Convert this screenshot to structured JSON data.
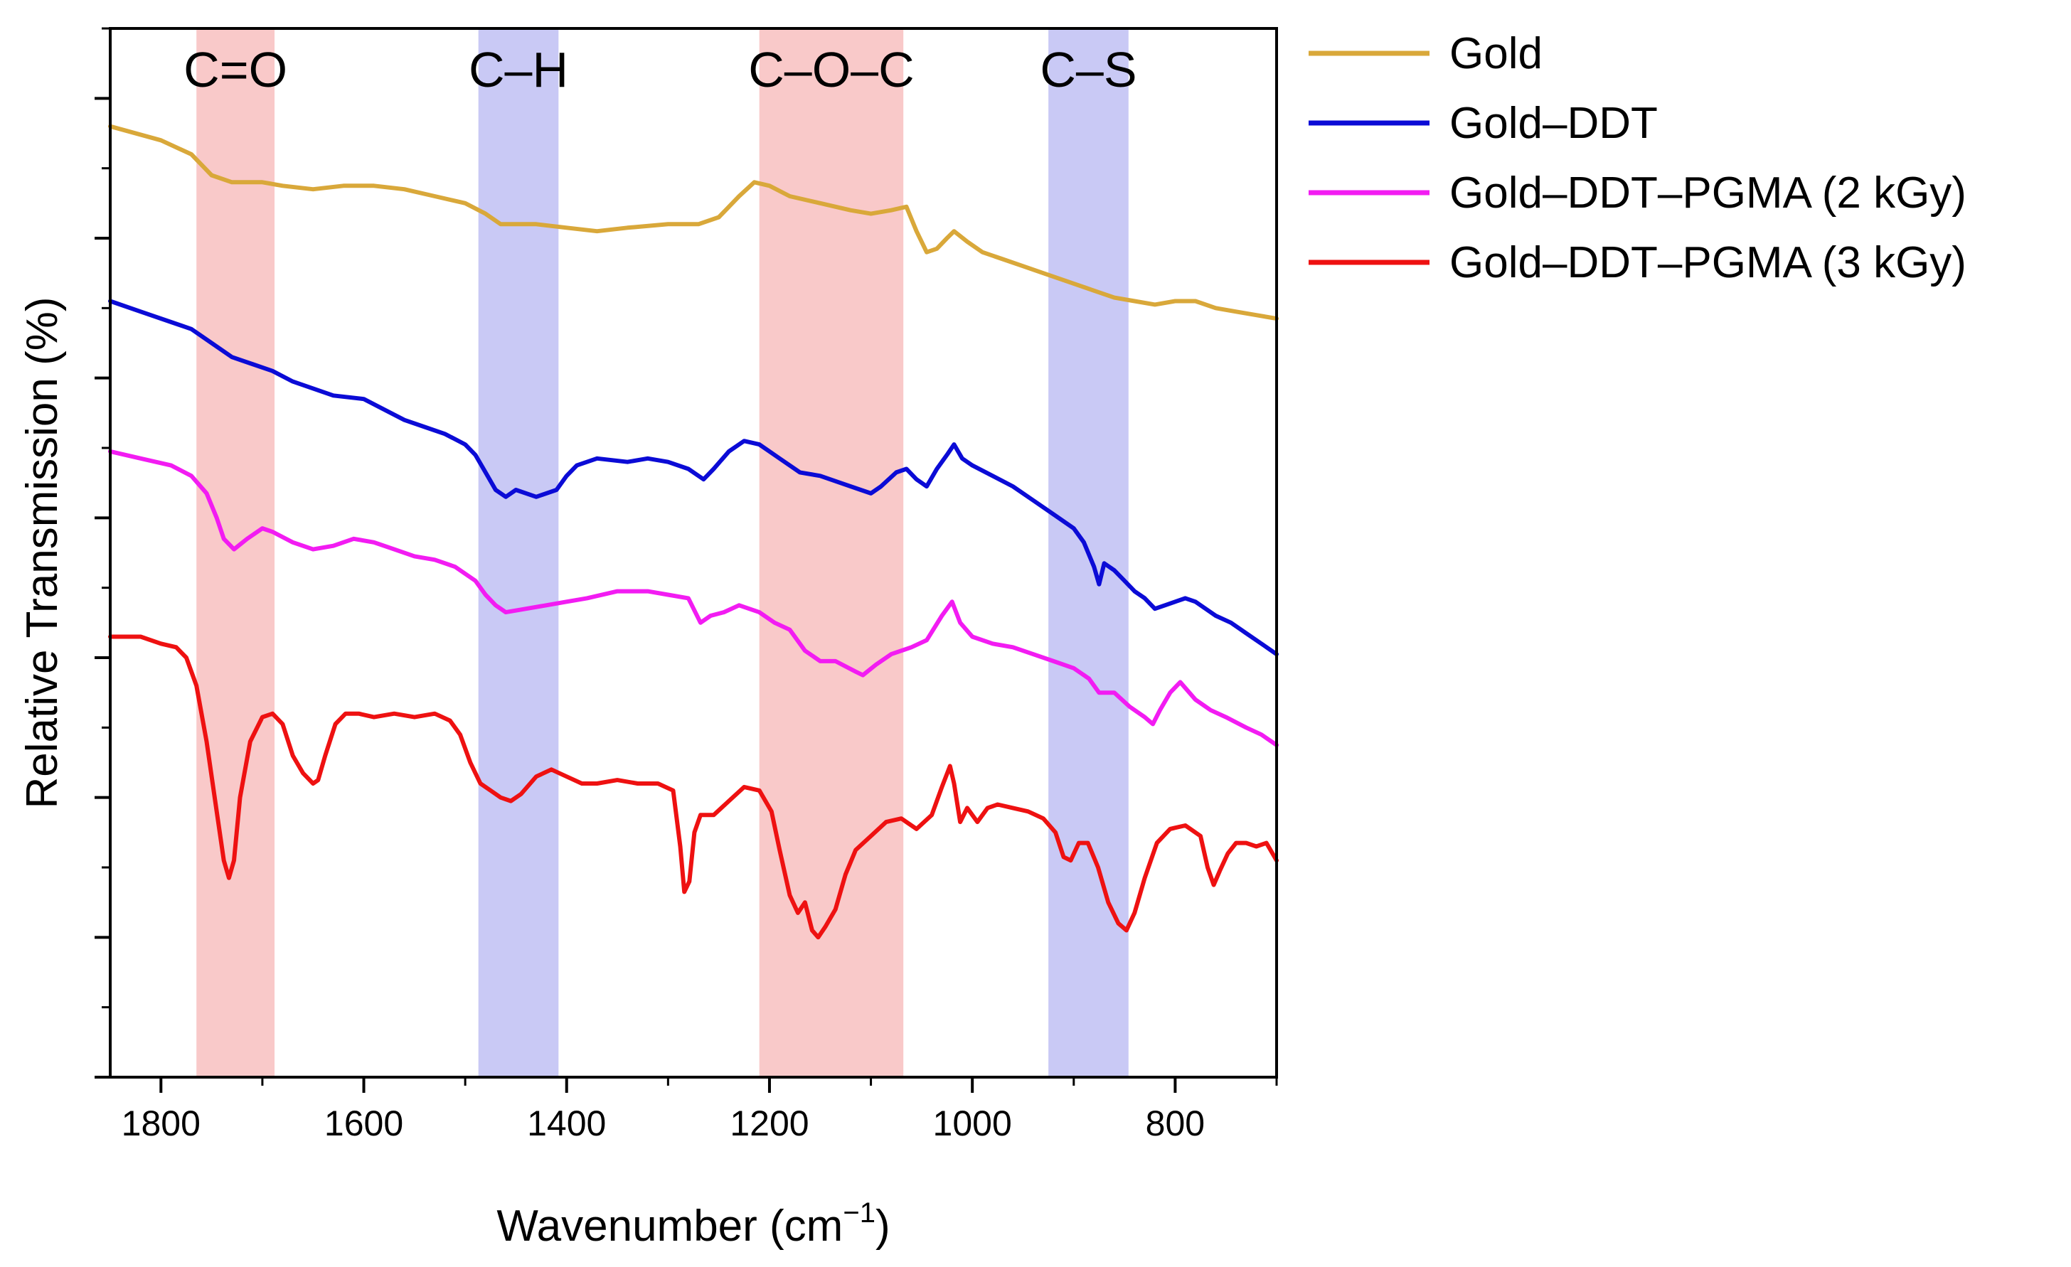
{
  "chart_data": {
    "type": "line",
    "title": "",
    "xlabel": "Wavenumber (cm",
    "xlabel_sup": "−1",
    "xlabel_close": ")",
    "ylabel": "Relative Transmission (%)",
    "xlim": [
      1850,
      700
    ],
    "x_reversed": true,
    "ylim": [
      0,
      15
    ],
    "y_tick_labels_shown": false,
    "x_ticks": [
      1800,
      1600,
      1400,
      1200,
      1000,
      800
    ],
    "x_tick_labels": [
      "1800",
      "1600",
      "1400",
      "1200",
      "1000",
      "800"
    ],
    "grid": false,
    "legend_position": "outside-right-top",
    "bands": [
      {
        "label": "C=O",
        "from": 1765,
        "to": 1688,
        "color": "#f9c9c9"
      },
      {
        "label": "C–H",
        "from": 1487,
        "to": 1408,
        "color": "#c9c9f5"
      },
      {
        "label": "C–O–C",
        "from": 1210,
        "to": 1068,
        "color": "#f9c9c9"
      },
      {
        "label": "C–S",
        "from": 925,
        "to": 846,
        "color": "#c9c9f5"
      }
    ],
    "series": [
      {
        "name": "Gold",
        "color": "#d9a83a",
        "x": [
          1850,
          1800,
          1770,
          1750,
          1730,
          1700,
          1680,
          1650,
          1620,
          1590,
          1560,
          1530,
          1500,
          1480,
          1465,
          1450,
          1430,
          1400,
          1370,
          1340,
          1300,
          1270,
          1250,
          1230,
          1215,
          1200,
          1180,
          1150,
          1120,
          1100,
          1080,
          1065,
          1055,
          1045,
          1035,
          1025,
          1018,
          1005,
          990,
          970,
          950,
          930,
          900,
          880,
          860,
          840,
          820,
          800,
          780,
          760,
          740,
          720,
          700
        ],
        "y": [
          13.6,
          13.4,
          13.2,
          12.9,
          12.8,
          12.8,
          12.75,
          12.7,
          12.75,
          12.75,
          12.7,
          12.6,
          12.5,
          12.35,
          12.2,
          12.2,
          12.2,
          12.15,
          12.1,
          12.15,
          12.2,
          12.2,
          12.3,
          12.6,
          12.8,
          12.75,
          12.6,
          12.5,
          12.4,
          12.35,
          12.4,
          12.45,
          12.1,
          11.8,
          11.85,
          12.0,
          12.1,
          11.95,
          11.8,
          11.7,
          11.6,
          11.5,
          11.35,
          11.25,
          11.15,
          11.1,
          11.05,
          11.1,
          11.1,
          11.0,
          10.95,
          10.9,
          10.85
        ]
      },
      {
        "name": "Gold–DDT",
        "color": "#0b0bd6",
        "x": [
          1850,
          1820,
          1790,
          1770,
          1750,
          1730,
          1710,
          1690,
          1670,
          1650,
          1630,
          1600,
          1580,
          1560,
          1540,
          1520,
          1500,
          1490,
          1480,
          1470,
          1460,
          1450,
          1430,
          1410,
          1400,
          1390,
          1370,
          1340,
          1320,
          1300,
          1280,
          1265,
          1255,
          1240,
          1225,
          1210,
          1190,
          1170,
          1150,
          1130,
          1110,
          1100,
          1090,
          1075,
          1065,
          1055,
          1045,
          1035,
          1025,
          1018,
          1010,
          1000,
          980,
          960,
          940,
          920,
          900,
          890,
          880,
          875,
          870,
          860,
          850,
          840,
          830,
          820,
          810,
          800,
          790,
          780,
          770,
          760,
          745,
          730,
          715,
          700
        ],
        "y": [
          11.1,
          10.95,
          10.8,
          10.7,
          10.5,
          10.3,
          10.2,
          10.1,
          9.95,
          9.85,
          9.75,
          9.7,
          9.55,
          9.4,
          9.3,
          9.2,
          9.05,
          8.9,
          8.65,
          8.4,
          8.3,
          8.4,
          8.3,
          8.4,
          8.6,
          8.75,
          8.85,
          8.8,
          8.85,
          8.8,
          8.7,
          8.55,
          8.7,
          8.95,
          9.1,
          9.05,
          8.85,
          8.65,
          8.6,
          8.5,
          8.4,
          8.35,
          8.45,
          8.65,
          8.7,
          8.55,
          8.45,
          8.7,
          8.9,
          9.05,
          8.85,
          8.75,
          8.6,
          8.45,
          8.25,
          8.05,
          7.85,
          7.65,
          7.3,
          7.05,
          7.35,
          7.25,
          7.1,
          6.95,
          6.85,
          6.7,
          6.75,
          6.8,
          6.85,
          6.8,
          6.7,
          6.6,
          6.5,
          6.35,
          6.2,
          6.05
        ]
      },
      {
        "name": "Gold–DDT–PGMA (2 kGy)",
        "color": "#f21cf2",
        "x": [
          1850,
          1820,
          1790,
          1770,
          1755,
          1745,
          1738,
          1728,
          1715,
          1700,
          1690,
          1670,
          1650,
          1630,
          1610,
          1590,
          1570,
          1550,
          1530,
          1510,
          1490,
          1480,
          1470,
          1460,
          1440,
          1420,
          1400,
          1380,
          1350,
          1320,
          1300,
          1280,
          1268,
          1258,
          1245,
          1230,
          1210,
          1195,
          1180,
          1165,
          1150,
          1135,
          1115,
          1108,
          1095,
          1080,
          1060,
          1045,
          1030,
          1020,
          1012,
          1000,
          980,
          960,
          940,
          920,
          900,
          885,
          875,
          860,
          845,
          830,
          822,
          815,
          805,
          795,
          780,
          765,
          750,
          730,
          715,
          700
        ],
        "y": [
          8.95,
          8.85,
          8.75,
          8.6,
          8.35,
          8.0,
          7.7,
          7.55,
          7.7,
          7.85,
          7.8,
          7.65,
          7.55,
          7.6,
          7.7,
          7.65,
          7.55,
          7.45,
          7.4,
          7.3,
          7.1,
          6.9,
          6.75,
          6.65,
          6.7,
          6.75,
          6.8,
          6.85,
          6.95,
          6.95,
          6.9,
          6.85,
          6.5,
          6.6,
          6.65,
          6.75,
          6.65,
          6.5,
          6.4,
          6.1,
          5.95,
          5.95,
          5.8,
          5.75,
          5.9,
          6.05,
          6.15,
          6.25,
          6.6,
          6.8,
          6.5,
          6.3,
          6.2,
          6.15,
          6.05,
          5.95,
          5.85,
          5.7,
          5.5,
          5.5,
          5.3,
          5.15,
          5.05,
          5.25,
          5.5,
          5.65,
          5.4,
          5.25,
          5.15,
          5.0,
          4.9,
          4.75
        ]
      },
      {
        "name": "Gold–DDT–PGMA (3 kGy)",
        "color": "#ee1111",
        "x": [
          1850,
          1820,
          1800,
          1785,
          1775,
          1765,
          1755,
          1745,
          1738,
          1733,
          1728,
          1722,
          1712,
          1700,
          1690,
          1680,
          1670,
          1660,
          1650,
          1645,
          1638,
          1628,
          1618,
          1605,
          1590,
          1570,
          1550,
          1530,
          1515,
          1505,
          1495,
          1485,
          1475,
          1465,
          1455,
          1445,
          1430,
          1415,
          1400,
          1385,
          1370,
          1350,
          1330,
          1310,
          1295,
          1288,
          1284,
          1279,
          1274,
          1268,
          1255,
          1240,
          1225,
          1210,
          1198,
          1190,
          1180,
          1172,
          1165,
          1158,
          1152,
          1145,
          1135,
          1125,
          1115,
          1100,
          1085,
          1070,
          1055,
          1040,
          1030,
          1022,
          1018,
          1012,
          1005,
          995,
          985,
          975,
          960,
          945,
          930,
          918,
          910,
          903,
          895,
          886,
          876,
          866,
          856,
          848,
          840,
          830,
          818,
          805,
          790,
          775,
          768,
          762,
          756,
          748,
          740,
          730,
          720,
          710,
          700
        ],
        "y": [
          6.3,
          6.3,
          6.2,
          6.15,
          6.0,
          5.6,
          4.8,
          3.8,
          3.1,
          2.85,
          3.1,
          4.0,
          4.8,
          5.15,
          5.2,
          5.05,
          4.6,
          4.35,
          4.2,
          4.25,
          4.6,
          5.05,
          5.2,
          5.2,
          5.15,
          5.2,
          5.15,
          5.2,
          5.1,
          4.9,
          4.5,
          4.2,
          4.1,
          4.0,
          3.95,
          4.05,
          4.3,
          4.4,
          4.3,
          4.2,
          4.2,
          4.25,
          4.2,
          4.2,
          4.1,
          3.3,
          2.65,
          2.8,
          3.5,
          3.75,
          3.75,
          3.95,
          4.15,
          4.1,
          3.8,
          3.25,
          2.6,
          2.35,
          2.5,
          2.1,
          2.0,
          2.15,
          2.4,
          2.9,
          3.25,
          3.45,
          3.65,
          3.7,
          3.55,
          3.75,
          4.15,
          4.45,
          4.2,
          3.65,
          3.85,
          3.65,
          3.85,
          3.9,
          3.85,
          3.8,
          3.7,
          3.5,
          3.15,
          3.1,
          3.35,
          3.35,
          3.0,
          2.5,
          2.2,
          2.1,
          2.35,
          2.85,
          3.35,
          3.55,
          3.6,
          3.45,
          3.0,
          2.75,
          2.95,
          3.2,
          3.35,
          3.35,
          3.3,
          3.35,
          3.1
        ]
      }
    ]
  }
}
